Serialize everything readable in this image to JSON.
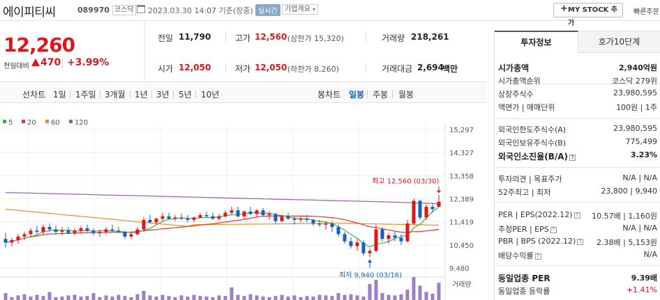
{
  "header": {
    "stock_name": "에이피티씨",
    "stock_code": "089970",
    "market": "코스닥",
    "datetime": "2023.03.30 14:07 기준(장중)",
    "realtime_label": "실시간",
    "company_overview": "기업개요",
    "mystock_label": "MY STOCK 추가",
    "quick_order": "빠른주문"
  },
  "price": {
    "current": "12,260",
    "change_label": "전일대비",
    "change_amount": "470",
    "change_percent": "+3.99%",
    "direction": "up",
    "up_color": "#e0161c"
  },
  "quote": {
    "prev_close_label": "전일",
    "prev_close": "11,790",
    "high_label": "고가",
    "high": "12,560",
    "upper_limit_label": "(상한가 15,320)",
    "volume_label": "거래량",
    "volume": "218,261",
    "open_label": "시가",
    "open": "12,050",
    "low_label": "저가",
    "low": "12,050",
    "lower_limit_label": "(하한가 8,260)",
    "amount_label": "거래대금",
    "amount": "2,694",
    "amount_unit": "백만"
  },
  "period_bar": {
    "line_label": "선차트",
    "line_periods": [
      "1일",
      "1주일",
      "3개월",
      "1년",
      "3년",
      "5년",
      "10년"
    ],
    "candle_label": "봉차트",
    "candle_periods": [
      "일봉",
      "주봉",
      "월봉"
    ],
    "active_candle": "일봉"
  },
  "chart_data": {
    "type": "candlestick",
    "legend": [
      {
        "name": "5",
        "color": "#3cb44b"
      },
      {
        "name": "20",
        "color": "#e8342c"
      },
      {
        "name": "60",
        "color": "#f08c1f"
      },
      {
        "name": "120",
        "color": "#9b59b6"
      }
    ],
    "y_ticks": [
      "15,297",
      "14,327",
      "13,358",
      "12,389",
      "11,419",
      "10,450",
      "9,480"
    ],
    "ylim": [
      9480,
      15297
    ],
    "volume_label": "거래량",
    "max_annotation": "최고 12,560 (03/30)",
    "min_annotation": "최저 9,940 (03/16)",
    "candles": [
      [
        10700,
        10950,
        10350,
        10550
      ],
      [
        10550,
        10750,
        10400,
        10650
      ],
      [
        10650,
        10900,
        10500,
        10800
      ],
      [
        10800,
        11000,
        10650,
        10900
      ],
      [
        10900,
        11150,
        10750,
        11050
      ],
      [
        11050,
        11250,
        10900,
        11000
      ],
      [
        11000,
        11300,
        10850,
        11200
      ],
      [
        11200,
        11350,
        11000,
        11100
      ],
      [
        11100,
        11250,
        10900,
        11000
      ],
      [
        11000,
        11200,
        10850,
        11050
      ],
      [
        11050,
        11200,
        10900,
        10950
      ],
      [
        10950,
        11150,
        10850,
        11050
      ],
      [
        11050,
        11250,
        10950,
        11150
      ],
      [
        11150,
        11300,
        11000,
        11050
      ],
      [
        11050,
        11150,
        10850,
        10950
      ],
      [
        10950,
        11100,
        10800,
        11000
      ],
      [
        11000,
        11200,
        10900,
        11100
      ],
      [
        11100,
        11300,
        11000,
        11050
      ],
      [
        11050,
        11200,
        10950,
        11000
      ],
      [
        11000,
        11050,
        10700,
        10800
      ],
      [
        10800,
        11000,
        10700,
        10900
      ],
      [
        10900,
        11200,
        10850,
        11100
      ],
      [
        11100,
        11600,
        11000,
        11500
      ],
      [
        11500,
        11700,
        11350,
        11400
      ],
      [
        11400,
        11600,
        11300,
        11550
      ],
      [
        11550,
        11800,
        11450,
        11650
      ],
      [
        11650,
        11800,
        11500,
        11550
      ],
      [
        11550,
        11700,
        11450,
        11600
      ],
      [
        11600,
        11750,
        11500,
        11550
      ],
      [
        11550,
        11700,
        11400,
        11500
      ],
      [
        11500,
        11650,
        11400,
        11600
      ],
      [
        11600,
        11800,
        11550,
        11700
      ],
      [
        11700,
        11850,
        11600,
        11650
      ],
      [
        11650,
        11800,
        11500,
        11550
      ],
      [
        11550,
        11750,
        11450,
        11650
      ],
      [
        11650,
        11900,
        11600,
        11800
      ],
      [
        11800,
        12050,
        11700,
        11900
      ],
      [
        11900,
        12050,
        11600,
        11650
      ],
      [
        11650,
        11900,
        11550,
        11850
      ],
      [
        11850,
        12050,
        11700,
        11750
      ],
      [
        11750,
        11950,
        11600,
        11900
      ],
      [
        11900,
        12000,
        11650,
        11700
      ],
      [
        11700,
        11850,
        11500,
        11750
      ],
      [
        11750,
        11800,
        11350,
        11450
      ],
      [
        11450,
        11700,
        11400,
        11650
      ],
      [
        11650,
        11800,
        11500,
        11550
      ],
      [
        11550,
        11650,
        11300,
        11500
      ],
      [
        11500,
        11650,
        11400,
        11550
      ],
      [
        11550,
        11700,
        11400,
        11500
      ],
      [
        11500,
        11550,
        11250,
        11350
      ],
      [
        11350,
        11500,
        11200,
        11300
      ],
      [
        11300,
        11450,
        11100,
        11350
      ],
      [
        11350,
        11450,
        11000,
        11200
      ],
      [
        11200,
        11300,
        10800,
        10900
      ],
      [
        10900,
        11000,
        10500,
        10600
      ],
      [
        10600,
        10750,
        10300,
        10400
      ],
      [
        10400,
        10700,
        10200,
        10550
      ],
      [
        10550,
        10650,
        10000,
        10100
      ],
      [
        10100,
        10300,
        9940,
        10200
      ],
      [
        10200,
        11300,
        10150,
        11100
      ],
      [
        11100,
        11200,
        10600,
        10700
      ],
      [
        10700,
        10950,
        10500,
        10850
      ],
      [
        10850,
        11000,
        10600,
        10750
      ],
      [
        10750,
        10900,
        10450,
        10600
      ],
      [
        10600,
        11500,
        10550,
        11350
      ],
      [
        11350,
        12400,
        11300,
        12300
      ],
      [
        12300,
        12350,
        11500,
        11600
      ],
      [
        11600,
        12150,
        11500,
        12050
      ],
      [
        12050,
        12200,
        11800,
        11950
      ],
      [
        12050,
        12560,
        12050,
        12260
      ]
    ],
    "volumes": [
      12,
      5,
      8,
      10,
      6,
      9,
      7,
      14,
      5,
      6,
      8,
      9,
      6,
      7,
      12,
      5,
      8,
      6,
      9,
      7,
      5,
      10,
      16,
      8,
      6,
      9,
      7,
      5,
      8,
      6,
      9,
      7,
      6,
      5,
      8,
      7,
      22,
      9,
      7,
      10,
      8,
      6,
      5,
      7,
      9,
      6,
      8,
      5,
      7,
      6,
      9,
      8,
      7,
      12,
      9,
      10,
      8,
      6,
      28,
      35,
      12,
      9,
      8,
      10,
      18,
      40,
      25,
      14,
      11,
      30
    ]
  },
  "right_panel": {
    "tab_active": "투자정보",
    "tab_other": "호가10단계",
    "rows": [
      {
        "label": "시가총액",
        "value": "2,940억원",
        "bold": true
      },
      {
        "label": "시가총액순위",
        "value": "코스닥 279위"
      },
      {
        "label": "상장주식수",
        "value": "23,980,595"
      },
      {
        "label": "액면가 | 매매단위",
        "value": "100원 | 1주"
      },
      {
        "label": "외국인한도주식수(A)",
        "value": "23,980,595"
      },
      {
        "label": "외국인보유주식수(B)",
        "value": "775,499"
      },
      {
        "label": "외국인소진율(B/A)",
        "value": "3.23%",
        "bold": true
      },
      {
        "label": "투자의견 | 목표주가",
        "value": "N/A | N/A"
      },
      {
        "label": "52주최고 | 최저",
        "value": "23,800 | 9,940"
      },
      {
        "label": "PER | EPS(2022.12)",
        "value": "10.57배 | 1,160원"
      },
      {
        "label": "추정PER | EPS",
        "value": "N/A | N/A"
      },
      {
        "label": "PBR | BPS (2022.12)",
        "value": "2.38배 | 5,153원"
      },
      {
        "label": "배당수익률",
        "value": "N/A"
      },
      {
        "label": "동일업종 PER",
        "value": "9.39배",
        "bold": true
      },
      {
        "label": "동일업종 등락률",
        "value": "+1.41%",
        "red": true
      }
    ]
  }
}
